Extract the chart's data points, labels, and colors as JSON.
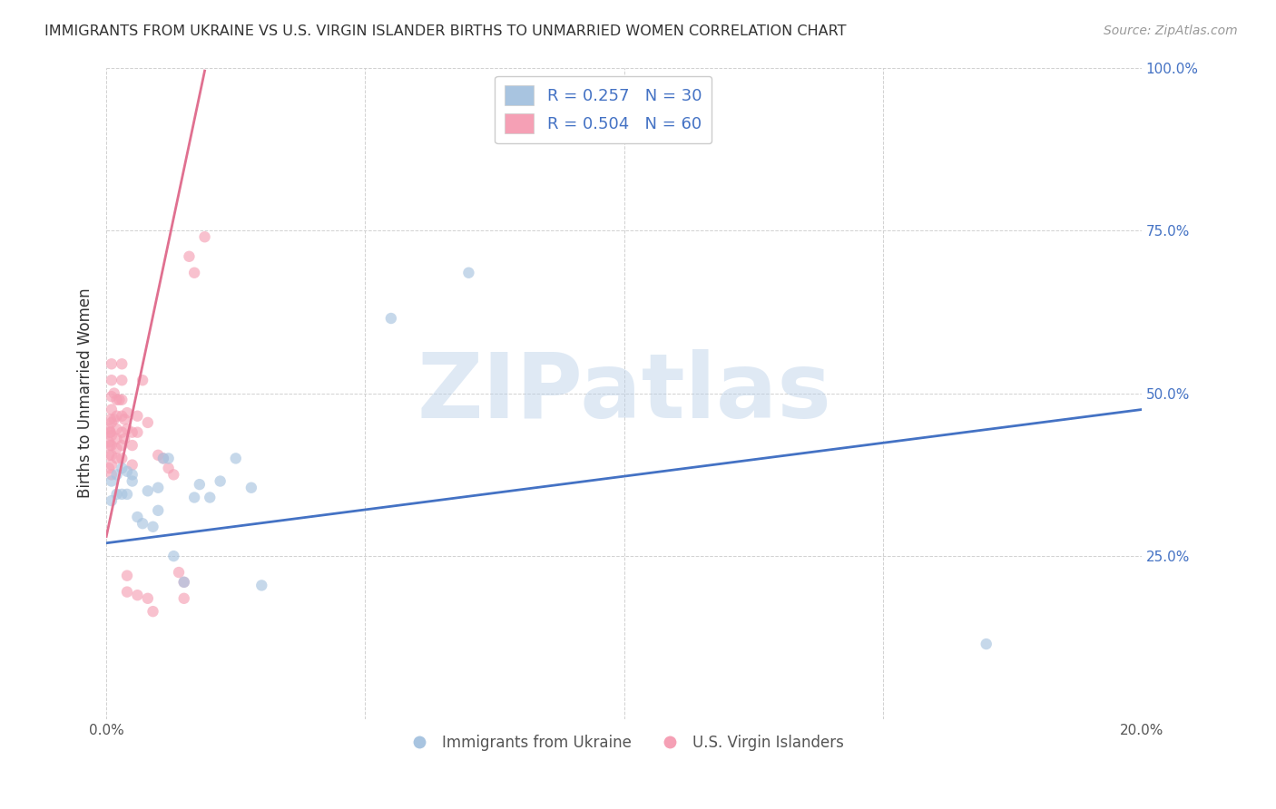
{
  "title": "IMMIGRANTS FROM UKRAINE VS U.S. VIRGIN ISLANDER BIRTHS TO UNMARRIED WOMEN CORRELATION CHART",
  "source": "Source: ZipAtlas.com",
  "ylabel": "Births to Unmarried Women",
  "watermark": "ZIPatlas",
  "legend_blue_r": "0.257",
  "legend_blue_n": "30",
  "legend_pink_r": "0.504",
  "legend_pink_n": "60",
  "legend_blue_label": "Immigrants from Ukraine",
  "legend_pink_label": "U.S. Virgin Islanders",
  "xlim": [
    0.0,
    0.2
  ],
  "ylim": [
    0.0,
    1.0
  ],
  "xticks": [
    0.0,
    0.05,
    0.1,
    0.15,
    0.2
  ],
  "yticks": [
    0.0,
    0.25,
    0.5,
    0.75,
    1.0
  ],
  "ytick_labels": [
    "",
    "25.0%",
    "50.0%",
    "75.0%",
    "100.0%"
  ],
  "xtick_labels": [
    "0.0%",
    "",
    "",
    "",
    "20.0%"
  ],
  "blue_x": [
    0.001,
    0.001,
    0.002,
    0.002,
    0.003,
    0.003,
    0.004,
    0.004,
    0.005,
    0.005,
    0.006,
    0.007,
    0.008,
    0.009,
    0.01,
    0.01,
    0.011,
    0.012,
    0.013,
    0.015,
    0.017,
    0.018,
    0.02,
    0.022,
    0.025,
    0.028,
    0.03,
    0.055,
    0.07,
    0.17
  ],
  "blue_y": [
    0.335,
    0.365,
    0.345,
    0.375,
    0.345,
    0.385,
    0.345,
    0.38,
    0.365,
    0.375,
    0.31,
    0.3,
    0.35,
    0.295,
    0.355,
    0.32,
    0.4,
    0.4,
    0.25,
    0.21,
    0.34,
    0.36,
    0.34,
    0.365,
    0.4,
    0.355,
    0.205,
    0.615,
    0.685,
    0.115
  ],
  "pink_x": [
    0.0005,
    0.0005,
    0.0005,
    0.0005,
    0.0007,
    0.0007,
    0.0008,
    0.0008,
    0.001,
    0.001,
    0.001,
    0.001,
    0.001,
    0.001,
    0.001,
    0.001,
    0.001,
    0.001,
    0.0015,
    0.0015,
    0.002,
    0.002,
    0.002,
    0.002,
    0.002,
    0.002,
    0.0025,
    0.003,
    0.003,
    0.003,
    0.003,
    0.003,
    0.003,
    0.003,
    0.0035,
    0.0035,
    0.004,
    0.004,
    0.004,
    0.004,
    0.005,
    0.005,
    0.005,
    0.006,
    0.006,
    0.006,
    0.007,
    0.008,
    0.008,
    0.009,
    0.01,
    0.011,
    0.012,
    0.013,
    0.014,
    0.015,
    0.015,
    0.016,
    0.017,
    0.019
  ],
  "pink_y": [
    0.445,
    0.425,
    0.405,
    0.385,
    0.44,
    0.42,
    0.46,
    0.44,
    0.545,
    0.52,
    0.495,
    0.475,
    0.455,
    0.435,
    0.42,
    0.405,
    0.39,
    0.375,
    0.5,
    0.46,
    0.49,
    0.465,
    0.445,
    0.43,
    0.415,
    0.4,
    0.49,
    0.545,
    0.52,
    0.49,
    0.465,
    0.44,
    0.42,
    0.4,
    0.46,
    0.43,
    0.47,
    0.445,
    0.22,
    0.195,
    0.44,
    0.42,
    0.39,
    0.465,
    0.44,
    0.19,
    0.52,
    0.455,
    0.185,
    0.165,
    0.405,
    0.4,
    0.385,
    0.375,
    0.225,
    0.21,
    0.185,
    0.71,
    0.685,
    0.74
  ],
  "blue_color": "#a8c4e0",
  "pink_color": "#f5a0b5",
  "blue_line_color": "#4472c4",
  "pink_line_color": "#e07090",
  "blue_trend_x0": 0.0,
  "blue_trend_y0": 0.27,
  "blue_trend_x1": 0.2,
  "blue_trend_y1": 0.475,
  "pink_trend_x0": 0.0,
  "pink_trend_y0": 0.28,
  "pink_trend_x1": 0.019,
  "pink_trend_y1": 0.995,
  "marker_size": 80,
  "marker_alpha": 0.65,
  "line_width": 2.0
}
